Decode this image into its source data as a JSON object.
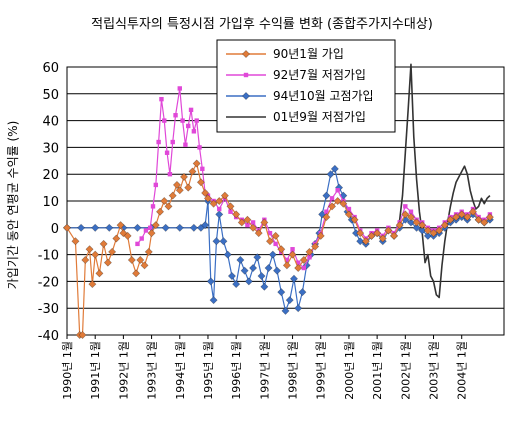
{
  "chart_data": {
    "type": "line",
    "title": "적립식투자의 특정시점 가입후 수익률 변화 (종합주가지수대상)",
    "ylabel": "가입기간 동안 연평균 수익률 (%)",
    "xlabel": "",
    "ylim": [
      -40,
      60
    ],
    "yticks": [
      -40,
      -30,
      -20,
      -10,
      0,
      10,
      20,
      30,
      40,
      50,
      60
    ],
    "xlim": [
      1990,
      2005.5
    ],
    "x_tick_values": [
      1990,
      1991,
      1992,
      1993,
      1994,
      1995,
      1996,
      1997,
      1998,
      1999,
      2000,
      2001,
      2002,
      2003,
      2004
    ],
    "x_tick_labels": [
      "1990년 1월",
      "1991년 1월",
      "1992년 1월",
      "1993년 1월",
      "1994년 1월",
      "1995년 1월",
      "1996년 1월",
      "1997년 1월",
      "1998년 1월",
      "1999년 1월",
      "2000년 1월",
      "2001년 1월",
      "2002년 1월",
      "2003년 1월",
      "2004년 1월"
    ],
    "grid": "horizontal",
    "legend_position": "top-right",
    "series": [
      {
        "name": "90년1월 가입",
        "color": "#e07b39",
        "marker": "diamond",
        "points": [
          [
            1990.0,
            0
          ],
          [
            1990.3,
            -5
          ],
          [
            1990.45,
            -40
          ],
          [
            1990.55,
            -40
          ],
          [
            1990.65,
            -12
          ],
          [
            1990.8,
            -8
          ],
          [
            1990.9,
            -21
          ],
          [
            1991.0,
            -10
          ],
          [
            1991.15,
            -17
          ],
          [
            1991.3,
            -6
          ],
          [
            1991.45,
            -13
          ],
          [
            1991.6,
            -9
          ],
          [
            1991.75,
            -4
          ],
          [
            1991.9,
            1
          ],
          [
            1992.0,
            -2
          ],
          [
            1992.15,
            -3
          ],
          [
            1992.3,
            -12
          ],
          [
            1992.45,
            -17
          ],
          [
            1992.6,
            -12
          ],
          [
            1992.75,
            -14
          ],
          [
            1992.9,
            -9
          ],
          [
            1993.0,
            -2
          ],
          [
            1993.15,
            1
          ],
          [
            1993.3,
            6
          ],
          [
            1993.45,
            10
          ],
          [
            1993.6,
            8
          ],
          [
            1993.75,
            12
          ],
          [
            1993.9,
            16
          ],
          [
            1994.0,
            14
          ],
          [
            1994.15,
            19
          ],
          [
            1994.3,
            15
          ],
          [
            1994.45,
            21
          ],
          [
            1994.6,
            24
          ],
          [
            1994.75,
            17
          ],
          [
            1994.9,
            13
          ],
          [
            1995.0,
            11
          ],
          [
            1995.2,
            9
          ],
          [
            1995.4,
            10
          ],
          [
            1995.6,
            12
          ],
          [
            1995.8,
            8
          ],
          [
            1996.0,
            5
          ],
          [
            1996.2,
            2
          ],
          [
            1996.4,
            3
          ],
          [
            1996.6,
            0
          ],
          [
            1996.8,
            -2
          ],
          [
            1997.0,
            2
          ],
          [
            1997.2,
            -5
          ],
          [
            1997.4,
            -3
          ],
          [
            1997.6,
            -8
          ],
          [
            1997.8,
            -14
          ],
          [
            1998.0,
            -10
          ],
          [
            1998.2,
            -15
          ],
          [
            1998.4,
            -12
          ],
          [
            1998.6,
            -9
          ],
          [
            1998.8,
            -7
          ],
          [
            1999.0,
            -3
          ],
          [
            1999.2,
            4
          ],
          [
            1999.4,
            8
          ],
          [
            1999.6,
            10
          ],
          [
            1999.8,
            9
          ],
          [
            2000.0,
            5
          ],
          [
            2000.2,
            3
          ],
          [
            2000.4,
            -2
          ],
          [
            2000.6,
            -5
          ],
          [
            2000.8,
            -3
          ],
          [
            2001.0,
            -2
          ],
          [
            2001.2,
            -4
          ],
          [
            2001.4,
            -1
          ],
          [
            2001.6,
            -3
          ],
          [
            2001.8,
            1
          ],
          [
            2002.0,
            5
          ],
          [
            2002.2,
            4
          ],
          [
            2002.4,
            2
          ],
          [
            2002.6,
            1
          ],
          [
            2002.8,
            -1
          ],
          [
            2003.0,
            -2
          ],
          [
            2003.2,
            -1
          ],
          [
            2003.4,
            1
          ],
          [
            2003.6,
            3
          ],
          [
            2003.8,
            4
          ],
          [
            2004.0,
            5
          ],
          [
            2004.2,
            4
          ],
          [
            2004.4,
            6
          ],
          [
            2004.6,
            3
          ],
          [
            2004.8,
            2
          ],
          [
            2005.0,
            4
          ]
        ]
      },
      {
        "name": "92년7월 저점가입",
        "color": "#e048d8",
        "marker": "square",
        "points": [
          [
            1992.5,
            -6
          ],
          [
            1992.65,
            -4
          ],
          [
            1992.8,
            -1
          ],
          [
            1992.95,
            0
          ],
          [
            1993.05,
            8
          ],
          [
            1993.15,
            16
          ],
          [
            1993.25,
            32
          ],
          [
            1993.35,
            48
          ],
          [
            1993.45,
            40
          ],
          [
            1993.55,
            28
          ],
          [
            1993.65,
            20
          ],
          [
            1993.75,
            32
          ],
          [
            1993.85,
            42
          ],
          [
            1994.0,
            52
          ],
          [
            1994.1,
            40
          ],
          [
            1994.2,
            31
          ],
          [
            1994.3,
            38
          ],
          [
            1994.4,
            44
          ],
          [
            1994.5,
            36
          ],
          [
            1994.6,
            40
          ],
          [
            1994.7,
            30
          ],
          [
            1994.8,
            22
          ],
          [
            1994.9,
            13
          ],
          [
            1995.0,
            12
          ],
          [
            1995.2,
            10
          ],
          [
            1995.4,
            7
          ],
          [
            1995.6,
            11
          ],
          [
            1995.8,
            6
          ],
          [
            1996.0,
            4
          ],
          [
            1996.2,
            3
          ],
          [
            1996.4,
            1
          ],
          [
            1996.6,
            2
          ],
          [
            1996.8,
            -1
          ],
          [
            1997.0,
            3
          ],
          [
            1997.2,
            -2
          ],
          [
            1997.4,
            -6
          ],
          [
            1997.6,
            -9
          ],
          [
            1997.8,
            -12
          ],
          [
            1998.0,
            -8
          ],
          [
            1998.2,
            -13
          ],
          [
            1998.4,
            -15
          ],
          [
            1998.6,
            -11
          ],
          [
            1998.8,
            -6
          ],
          [
            1999.0,
            -2
          ],
          [
            1999.2,
            6
          ],
          [
            1999.4,
            11
          ],
          [
            1999.6,
            14
          ],
          [
            1999.8,
            10
          ],
          [
            2000.0,
            7
          ],
          [
            2000.2,
            4
          ],
          [
            2000.4,
            -1
          ],
          [
            2000.6,
            -4
          ],
          [
            2000.8,
            -2
          ],
          [
            2001.0,
            -1
          ],
          [
            2001.2,
            -3
          ],
          [
            2001.4,
            0
          ],
          [
            2001.6,
            -2
          ],
          [
            2001.8,
            2
          ],
          [
            2002.0,
            8
          ],
          [
            2002.2,
            6
          ],
          [
            2002.4,
            3
          ],
          [
            2002.6,
            2
          ],
          [
            2002.8,
            0
          ],
          [
            2003.0,
            -1
          ],
          [
            2003.2,
            0
          ],
          [
            2003.4,
            2
          ],
          [
            2003.6,
            4
          ],
          [
            2003.8,
            5
          ],
          [
            2004.0,
            6
          ],
          [
            2004.2,
            5
          ],
          [
            2004.4,
            7
          ],
          [
            2004.6,
            4
          ],
          [
            2004.8,
            3
          ],
          [
            2005.0,
            5
          ]
        ]
      },
      {
        "name": "94년10월 고점가입",
        "color": "#3b6fc4",
        "marker": "diamond",
        "points": [
          [
            1990.0,
            0
          ],
          [
            1990.5,
            0
          ],
          [
            1991.0,
            0
          ],
          [
            1991.5,
            0
          ],
          [
            1992.0,
            0
          ],
          [
            1992.5,
            0
          ],
          [
            1993.0,
            0
          ],
          [
            1993.5,
            0
          ],
          [
            1994.0,
            0
          ],
          [
            1994.5,
            0
          ],
          [
            1994.75,
            0
          ],
          [
            1994.9,
            1
          ],
          [
            1995.0,
            10
          ],
          [
            1995.1,
            -20
          ],
          [
            1995.2,
            -27
          ],
          [
            1995.3,
            -5
          ],
          [
            1995.4,
            5
          ],
          [
            1995.55,
            -5
          ],
          [
            1995.7,
            -10
          ],
          [
            1995.85,
            -18
          ],
          [
            1996.0,
            -21
          ],
          [
            1996.15,
            -12
          ],
          [
            1996.3,
            -16
          ],
          [
            1996.45,
            -20
          ],
          [
            1996.6,
            -15
          ],
          [
            1996.75,
            -11
          ],
          [
            1996.9,
            -18
          ],
          [
            1997.0,
            -22
          ],
          [
            1997.15,
            -15
          ],
          [
            1997.3,
            -10
          ],
          [
            1997.45,
            -16
          ],
          [
            1997.6,
            -24
          ],
          [
            1997.75,
            -31
          ],
          [
            1997.9,
            -27
          ],
          [
            1998.05,
            -19
          ],
          [
            1998.2,
            -30
          ],
          [
            1998.35,
            -24
          ],
          [
            1998.5,
            -14
          ],
          [
            1998.65,
            -10
          ],
          [
            1998.8,
            -6
          ],
          [
            1998.95,
            -2
          ],
          [
            1999.05,
            5
          ],
          [
            1999.2,
            12
          ],
          [
            1999.35,
            20
          ],
          [
            1999.5,
            22
          ],
          [
            1999.65,
            15
          ],
          [
            1999.8,
            12
          ],
          [
            1999.95,
            6
          ],
          [
            2000.1,
            3
          ],
          [
            2000.25,
            -2
          ],
          [
            2000.4,
            -5
          ],
          [
            2000.6,
            -6
          ],
          [
            2000.8,
            -3
          ],
          [
            2001.0,
            -2
          ],
          [
            2001.2,
            -5
          ],
          [
            2001.4,
            -1
          ],
          [
            2001.6,
            -3
          ],
          [
            2001.8,
            0
          ],
          [
            2002.0,
            3
          ],
          [
            2002.2,
            2
          ],
          [
            2002.4,
            0
          ],
          [
            2002.6,
            -1
          ],
          [
            2002.8,
            -3
          ],
          [
            2003.0,
            -3
          ],
          [
            2003.2,
            -2
          ],
          [
            2003.4,
            0
          ],
          [
            2003.6,
            2
          ],
          [
            2003.8,
            3
          ],
          [
            2004.0,
            4
          ],
          [
            2004.2,
            3
          ],
          [
            2004.4,
            5
          ],
          [
            2004.6,
            3
          ],
          [
            2004.8,
            2
          ],
          [
            2005.0,
            3
          ]
        ]
      },
      {
        "name": "01년9월 저점가입",
        "color": "#333333",
        "marker": "none",
        "points": [
          [
            2001.7,
            0
          ],
          [
            2001.8,
            3
          ],
          [
            2001.9,
            12
          ],
          [
            2002.0,
            28
          ],
          [
            2002.1,
            44
          ],
          [
            2002.2,
            61
          ],
          [
            2002.3,
            34
          ],
          [
            2002.4,
            18
          ],
          [
            2002.5,
            6
          ],
          [
            2002.6,
            -2
          ],
          [
            2002.7,
            -13
          ],
          [
            2002.8,
            -10
          ],
          [
            2002.9,
            -18
          ],
          [
            2003.0,
            -20
          ],
          [
            2003.1,
            -25
          ],
          [
            2003.2,
            -26
          ],
          [
            2003.3,
            -14
          ],
          [
            2003.4,
            -5
          ],
          [
            2003.5,
            2
          ],
          [
            2003.6,
            8
          ],
          [
            2003.7,
            13
          ],
          [
            2003.8,
            17
          ],
          [
            2003.9,
            19
          ],
          [
            2004.0,
            21
          ],
          [
            2004.1,
            23
          ],
          [
            2004.2,
            20
          ],
          [
            2004.3,
            14
          ],
          [
            2004.4,
            10
          ],
          [
            2004.5,
            7
          ],
          [
            2004.6,
            8
          ],
          [
            2004.7,
            11
          ],
          [
            2004.8,
            9
          ],
          [
            2004.9,
            11
          ],
          [
            2005.0,
            12
          ]
        ]
      }
    ]
  }
}
